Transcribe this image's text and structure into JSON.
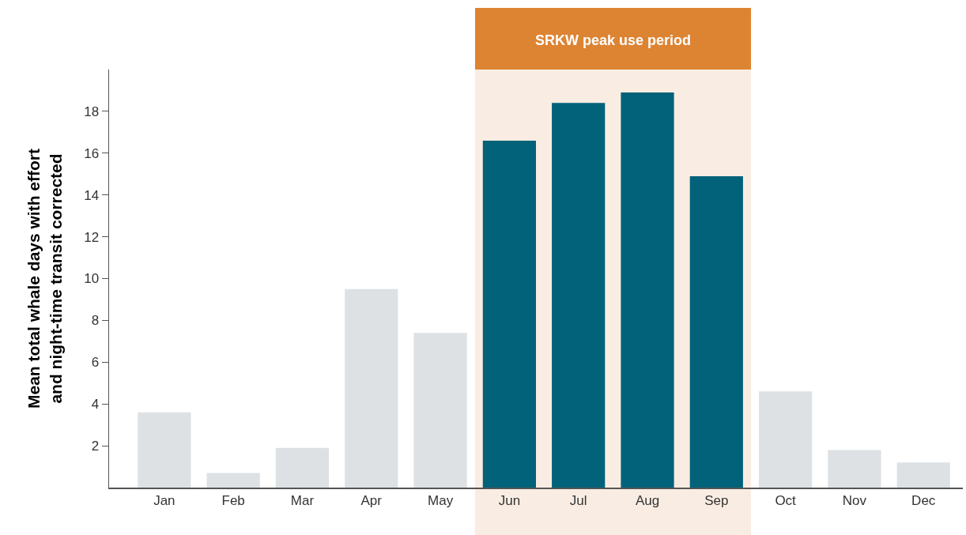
{
  "chart_data": {
    "type": "bar",
    "ylabel": "Mean total whale days with effort\nand night-time transit corrected",
    "categories": [
      "Jan",
      "Feb",
      "Mar",
      "Apr",
      "May",
      "Jun",
      "Jul",
      "Aug",
      "Sep",
      "Oct",
      "Nov",
      "Dec"
    ],
    "values": [
      3.6,
      0.7,
      1.9,
      9.5,
      7.4,
      16.6,
      18.4,
      18.9,
      14.9,
      4.6,
      1.8,
      1.2
    ],
    "colors": [
      "#dde1e4",
      "#dde1e4",
      "#dde1e4",
      "#dde1e4",
      "#dde1e4",
      "#02627a",
      "#02627a",
      "#02627a",
      "#02627a",
      "#dde1e4",
      "#dde1e4",
      "#dde1e4"
    ],
    "ylim": [
      0,
      20
    ],
    "yticks": [
      2,
      4,
      6,
      8,
      10,
      12,
      14,
      16,
      18
    ],
    "grid": false,
    "bands": [
      {
        "axis": "x",
        "from": "Jun",
        "to": "Sep",
        "label": "SRKW peak use period",
        "color": "#f9ede3"
      }
    ]
  }
}
